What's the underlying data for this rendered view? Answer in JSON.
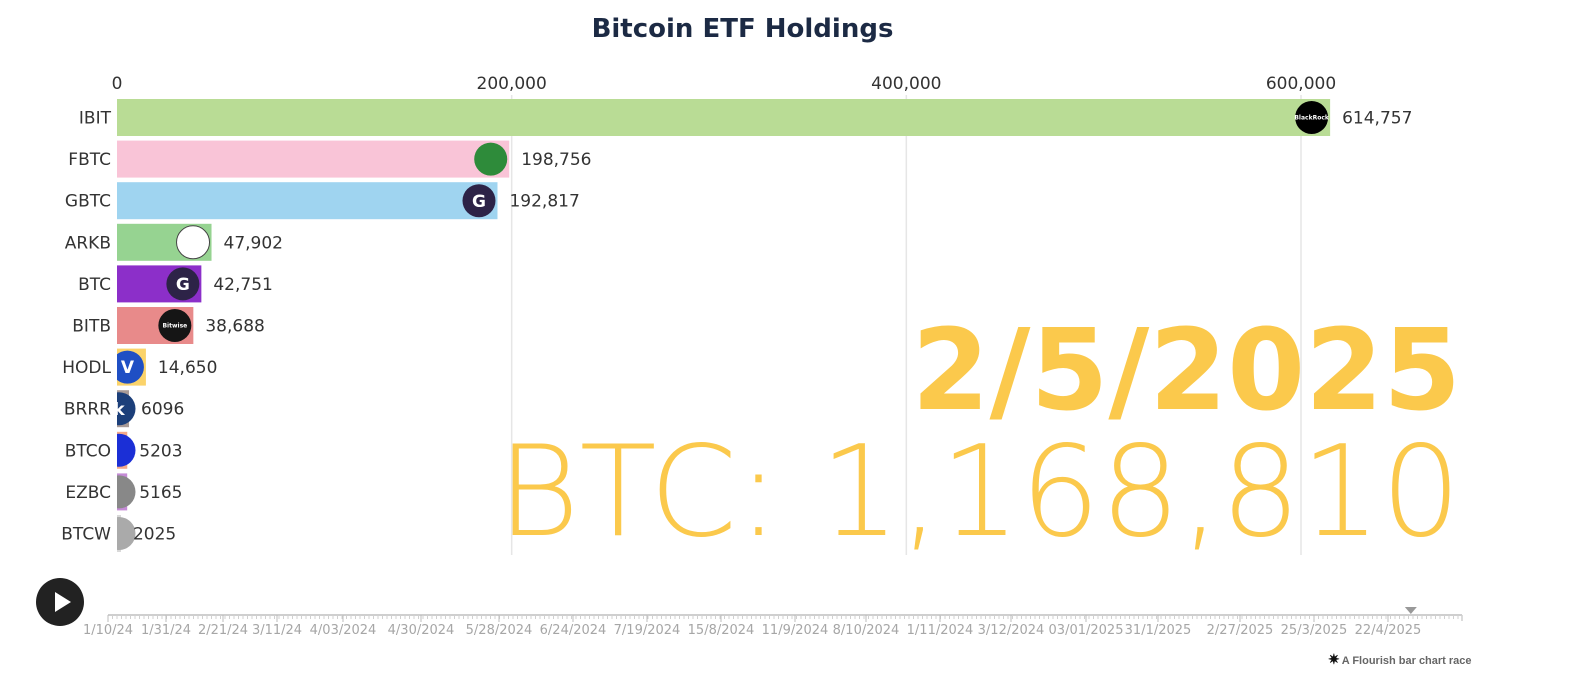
{
  "chart_data": {
    "type": "bar",
    "title": "Bitcoin ETF Holdings",
    "xlim": [
      0,
      650000
    ],
    "xticks": [
      {
        "value": 0,
        "label": "0"
      },
      {
        "value": 200000,
        "label": "200,000"
      },
      {
        "value": 400000,
        "label": "400,000"
      },
      {
        "value": 600000,
        "label": "600,000"
      }
    ],
    "grid": true,
    "orientation": "horizontal",
    "bars": [
      {
        "name": "IBIT",
        "value": 614757,
        "label": "614,757",
        "color": "#b9dc95",
        "logo": "blackrock-logo",
        "logo_text": "BlackRock",
        "logo_color": "#000000"
      },
      {
        "name": "FBTC",
        "value": 198756,
        "label": "198,756",
        "color": "#f9c4d7",
        "logo": "fidelity-logo",
        "logo_text": "",
        "logo_color": "#2e8b3a"
      },
      {
        "name": "GBTC",
        "value": 192817,
        "label": "192,817",
        "color": "#9fd4f0",
        "logo": "grayscale-logo",
        "logo_text": "G",
        "logo_color": "#2d2347"
      },
      {
        "name": "ARKB",
        "value": 47902,
        "label": "47,902",
        "color": "#96d391",
        "logo": "ark-logo",
        "logo_text": "",
        "logo_color": "#ffffff"
      },
      {
        "name": "BTC",
        "value": 42751,
        "label": "42,751",
        "color": "#8c2fc9",
        "logo": "grayscale-logo",
        "logo_text": "G",
        "logo_color": "#2d2347"
      },
      {
        "name": "BITB",
        "value": 38688,
        "label": "38,688",
        "color": "#e88a8a",
        "logo": "bitwise-logo",
        "logo_text": "Bitwise",
        "logo_color": "#151515"
      },
      {
        "name": "HODL",
        "value": 14650,
        "label": "14,650",
        "color": "#fbd36a",
        "logo": "vaneck-logo",
        "logo_text": "V",
        "logo_color": "#1f4fc4"
      },
      {
        "name": "BRRR",
        "value": 6096,
        "label": "6096",
        "color": "#a89a96",
        "logo": "coinshares-logo",
        "logo_text": "k",
        "logo_color": "#1c3f7a"
      },
      {
        "name": "BTCO",
        "value": 5203,
        "label": "5203",
        "color": "#f4a98a",
        "logo": "invesco-logo",
        "logo_text": "",
        "logo_color": "#1b2fd6"
      },
      {
        "name": "EZBC",
        "value": 5165,
        "label": "5165",
        "color": "#c58bd6",
        "logo": "franklin-logo",
        "logo_text": "",
        "logo_color": "#888888"
      },
      {
        "name": "BTCW",
        "value": 2025,
        "label": "2025",
        "color": "#d9d9d9",
        "logo": "wisdomtree-logo",
        "logo_text": "",
        "logo_color": "#aaaaaa"
      }
    ],
    "current_date": "2/5/2025",
    "total_label": "BTC: 1,168,810",
    "accent_color": "#fbc94c"
  },
  "timeline": {
    "ticks": [
      "1/10/24",
      "1/31/24",
      "2/21/24",
      "3/11/24",
      "4/03/2024",
      "4/30/2024",
      "5/28/2024",
      "6/24/2024",
      "7/19/2024",
      "15/8/2024",
      "11/9/2024",
      "8/10/2024",
      "1/11/2024",
      "3/12/2024",
      "03/01/2025",
      "31/1/2025",
      "2/27/2025",
      "25/3/2025",
      "22/4/2025"
    ],
    "progress": 0.96
  },
  "controls": {
    "play_icon": "play-icon"
  },
  "credit": {
    "text": "A Flourish bar chart race"
  }
}
